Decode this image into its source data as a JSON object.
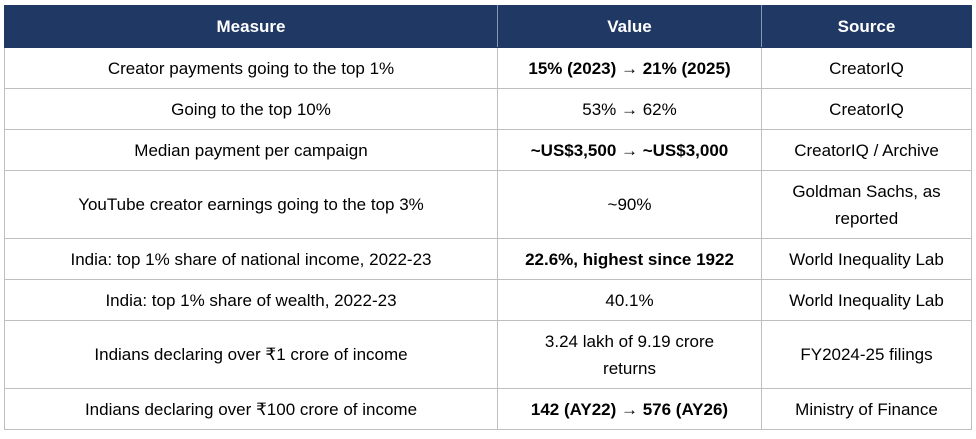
{
  "table": {
    "headers": [
      "Measure",
      "Value",
      "Source"
    ],
    "rows": [
      {
        "measure": "Creator payments going to the top 1%",
        "value": "15% (2023) → 21% (2025)",
        "value_bold": true,
        "source": "CreatorIQ"
      },
      {
        "measure": "Going to the top 10%",
        "value": "53% → 62%",
        "value_bold": false,
        "source": "CreatorIQ"
      },
      {
        "measure": "Median payment per campaign",
        "value": "~US$3,500 → ~US$3,000",
        "value_bold": true,
        "source": "CreatorIQ / Archive"
      },
      {
        "measure": "YouTube creator earnings going to the top 3%",
        "value": "~90%",
        "value_bold": false,
        "source": "Goldman Sachs, as reported"
      },
      {
        "measure": "India: top 1% share of national income, 2022-23",
        "value": "22.6%, highest since 1922",
        "value_bold": true,
        "source": "World Inequality Lab"
      },
      {
        "measure": "India: top 1% share of wealth, 2022-23",
        "value": "40.1%",
        "value_bold": false,
        "source": "World Inequality Lab"
      },
      {
        "measure": "Indians declaring over ₹1 crore of income",
        "value": "3.24 lakh of 9.19 crore returns",
        "value_bold": false,
        "source": "FY2024-25 filings"
      },
      {
        "measure": "Indians declaring over ₹100 crore of income",
        "value": "142 (AY22) → 576 (AY26)",
        "value_bold": true,
        "source": "Ministry of Finance"
      }
    ]
  },
  "colors": {
    "header_bg": "#1f3864",
    "header_text": "#ffffff",
    "grid": "#bfbfbf"
  }
}
